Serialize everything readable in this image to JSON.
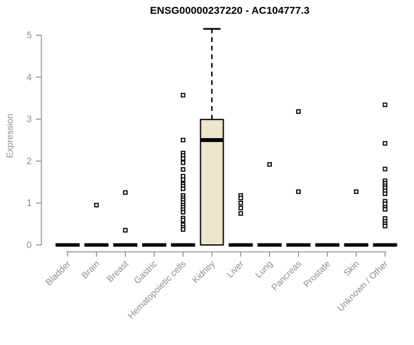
{
  "chart_data": {
    "type": "boxplot",
    "title": "ENSG00000237220 - AC104777.3",
    "ylabel": "Expression",
    "xlabel": "",
    "ylim": [
      0,
      5.2
    ],
    "yticks": [
      0,
      1,
      2,
      3,
      4,
      5
    ],
    "grid": false,
    "legend": false,
    "categories": [
      "Bladder",
      "Brain",
      "Breast",
      "Gastric",
      "Hematopoietic cells",
      "Kidney",
      "Liver",
      "Lung",
      "Pancreas",
      "Prostate",
      "Skin",
      "Unknown / Other"
    ],
    "boxes": [
      {
        "category": "Bladder",
        "q1": 0,
        "median": 0,
        "q3": 0,
        "whisker_low": 0,
        "whisker_high": 0,
        "outliers": []
      },
      {
        "category": "Brain",
        "q1": 0,
        "median": 0,
        "q3": 0,
        "whisker_low": 0,
        "whisker_high": 0,
        "outliers": [
          0.95
        ]
      },
      {
        "category": "Breast",
        "q1": 0,
        "median": 0,
        "q3": 0,
        "whisker_low": 0,
        "whisker_high": 0,
        "outliers": [
          1.25,
          0.35
        ]
      },
      {
        "category": "Gastric",
        "q1": 0,
        "median": 0,
        "q3": 0,
        "whisker_low": 0,
        "whisker_high": 0,
        "outliers": []
      },
      {
        "category": "Hematopoietic cells",
        "q1": 0,
        "median": 0,
        "q3": 0,
        "whisker_low": 0,
        "whisker_high": 0,
        "outliers": [
          3.57,
          2.5,
          2.19,
          2.13,
          2.06,
          1.96,
          1.8,
          1.64,
          1.56,
          1.45,
          1.4,
          1.34,
          1.18,
          1.12,
          1.07,
          1.01,
          0.95,
          0.9,
          0.84,
          0.78,
          0.64,
          0.59,
          0.48,
          0.42,
          0.37
        ]
      },
      {
        "category": "Kidney",
        "q1": 0,
        "median": 2.5,
        "q3": 2.99,
        "whisker_low": 0,
        "whisker_high": 5.15,
        "outliers": []
      },
      {
        "category": "Liver",
        "q1": 0,
        "median": 0,
        "q3": 0,
        "whisker_low": 0,
        "whisker_high": 0,
        "outliers": [
          1.18,
          1.12,
          1.0,
          0.88,
          0.75
        ]
      },
      {
        "category": "Lung",
        "q1": 0,
        "median": 0,
        "q3": 0,
        "whisker_low": 0,
        "whisker_high": 0,
        "outliers": [
          1.92
        ]
      },
      {
        "category": "Pancreas",
        "q1": 0,
        "median": 0,
        "q3": 0,
        "whisker_low": 0,
        "whisker_high": 0,
        "outliers": [
          3.18,
          1.27
        ]
      },
      {
        "category": "Prostate",
        "q1": 0,
        "median": 0,
        "q3": 0,
        "whisker_low": 0,
        "whisker_high": 0,
        "outliers": []
      },
      {
        "category": "Skin",
        "q1": 0,
        "median": 0,
        "q3": 0,
        "whisker_low": 0,
        "whisker_high": 0,
        "outliers": [
          1.27
        ]
      },
      {
        "category": "Unknown / Other",
        "q1": 0,
        "median": 0,
        "q3": 0,
        "whisker_low": 0,
        "whisker_high": 0,
        "outliers": [
          3.34,
          2.42,
          1.81,
          1.53,
          1.47,
          1.41,
          1.36,
          1.29,
          1.22,
          1.04,
          0.98,
          0.9,
          0.85,
          0.63,
          0.56,
          0.5,
          0.45
        ]
      }
    ],
    "styles": {
      "box_fill": "#ece7cc",
      "box_stroke": "#000000",
      "median_color": "#000000",
      "collapsed_bar_color": "#000000",
      "outlier_fill": "#ffffff",
      "outlier_stroke": "#000000",
      "axis_color": "#888888",
      "tick_label_color": "#8c8c8c",
      "title_color": "#000000"
    }
  }
}
